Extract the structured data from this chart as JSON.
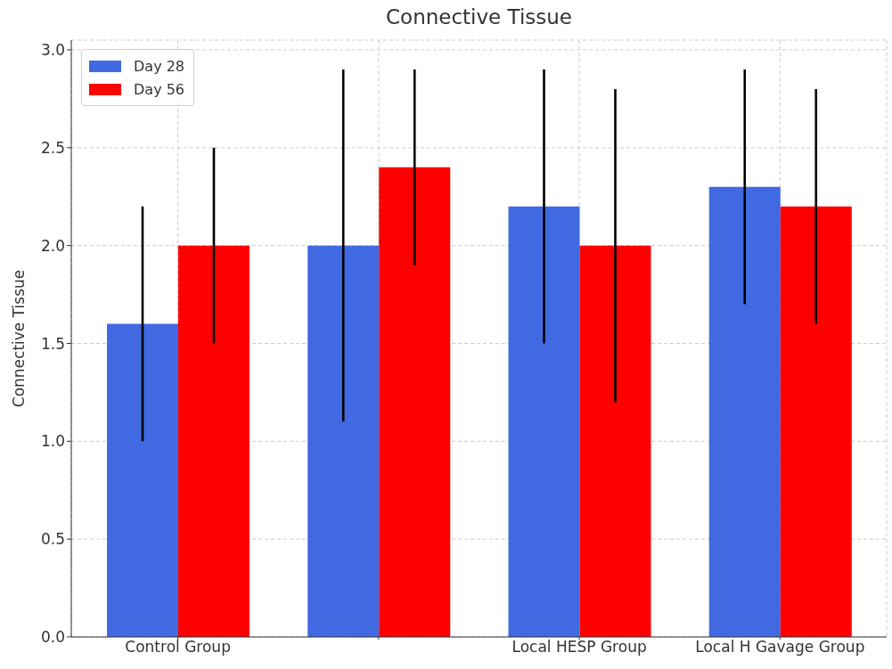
{
  "chart_data": {
    "type": "bar",
    "title": "Connective Tissue",
    "ylabel": "Connective Tissue",
    "categories": [
      "Control Group",
      null,
      "Local HESP Group",
      "Local H Gavage Group"
    ],
    "series": [
      {
        "name": "Day 28",
        "color": "#4169e1",
        "values": [
          1.6,
          2.0,
          2.2,
          2.3
        ],
        "errors": [
          0.6,
          0.9,
          0.7,
          0.6
        ]
      },
      {
        "name": "Day 56",
        "color": "#ff0000",
        "values": [
          2.0,
          2.4,
          2.0,
          2.2
        ],
        "errors": [
          0.5,
          0.5,
          0.8,
          0.6
        ]
      }
    ],
    "ylim": [
      0,
      3.05
    ],
    "yticks": [
      {
        "value": 0,
        "label": "0.0"
      },
      0.5,
      {
        "value": 1,
        "label": "1.0"
      },
      1.5,
      {
        "value": 2,
        "label": "2.0"
      },
      2.5,
      {
        "value": 3,
        "label": "3.0"
      }
    ],
    "grid": true,
    "legend": "top left"
  }
}
